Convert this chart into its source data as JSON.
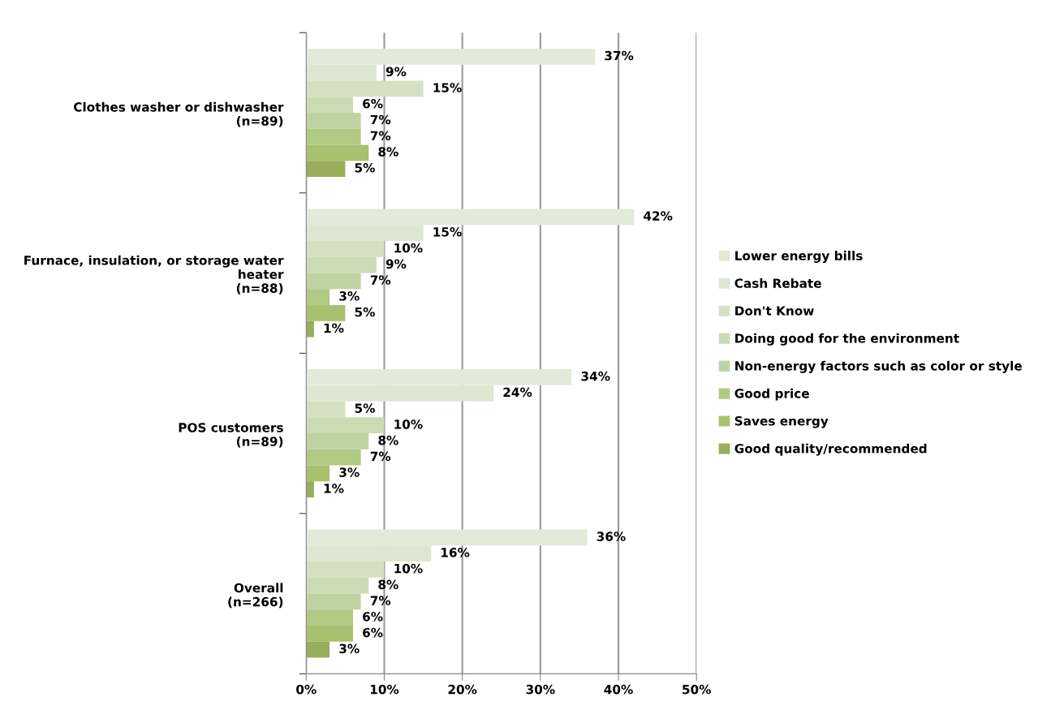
{
  "chart_data": {
    "type": "bar",
    "orientation": "horizontal",
    "categories": [
      "Clothes washer or dishwasher\n(n=89)",
      "Furnace, insulation, or storage water\nheater\n(n=88)",
      "POS customers\n(n=89)",
      "Overall\n(n=266)"
    ],
    "series": [
      {
        "name": "Lower energy bills",
        "color": "#e3ead9",
        "values": [
          37,
          42,
          34,
          36
        ],
        "value_labels": [
          "37%",
          "42%",
          "34%",
          "36%"
        ]
      },
      {
        "name": "Cash Rebate",
        "color": "#dde6d1",
        "values": [
          9,
          15,
          24,
          16
        ],
        "value_labels": [
          "9%",
          "15%",
          "24%",
          "16%"
        ]
      },
      {
        "name": "Don't Know",
        "color": "#d5e0c3",
        "values": [
          15,
          10,
          5,
          10
        ],
        "value_labels": [
          "15%",
          "10%",
          "5%",
          "10%"
        ]
      },
      {
        "name": "Doing good for the environment",
        "color": "#cbdbb4",
        "values": [
          6,
          9,
          10,
          8
        ],
        "value_labels": [
          "6%",
          "9%",
          "10%",
          "8%"
        ]
      },
      {
        "name": "Non-energy factors such as color or style",
        "color": "#bfd3a2",
        "values": [
          7,
          7,
          8,
          7
        ],
        "value_labels": [
          "7%",
          "7%",
          "8%",
          "7%"
        ]
      },
      {
        "name": "Good price",
        "color": "#b0c983",
        "values": [
          7,
          3,
          7,
          6
        ],
        "value_labels": [
          "7%",
          "3%",
          "7%",
          "6%"
        ]
      },
      {
        "name": "Saves energy",
        "color": "#a7c16e",
        "values": [
          8,
          5,
          3,
          6
        ],
        "value_labels": [
          "8%",
          "5%",
          "3%",
          "6%"
        ]
      },
      {
        "name": "Good quality/recommended",
        "color": "#98ae5b",
        "values": [
          5,
          1,
          1,
          3
        ],
        "value_labels": [
          "5%",
          "1%",
          "1%",
          "3%"
        ]
      }
    ],
    "xlim": [
      0,
      50
    ],
    "xticks": [
      {
        "value": 0,
        "label": "0%"
      },
      {
        "value": 10,
        "label": "10%"
      },
      {
        "value": 20,
        "label": "20%"
      },
      {
        "value": 30,
        "label": "30%"
      },
      {
        "value": 40,
        "label": "40%"
      },
      {
        "value": 50,
        "label": "50%"
      }
    ],
    "grid": "x",
    "legend": "right"
  }
}
